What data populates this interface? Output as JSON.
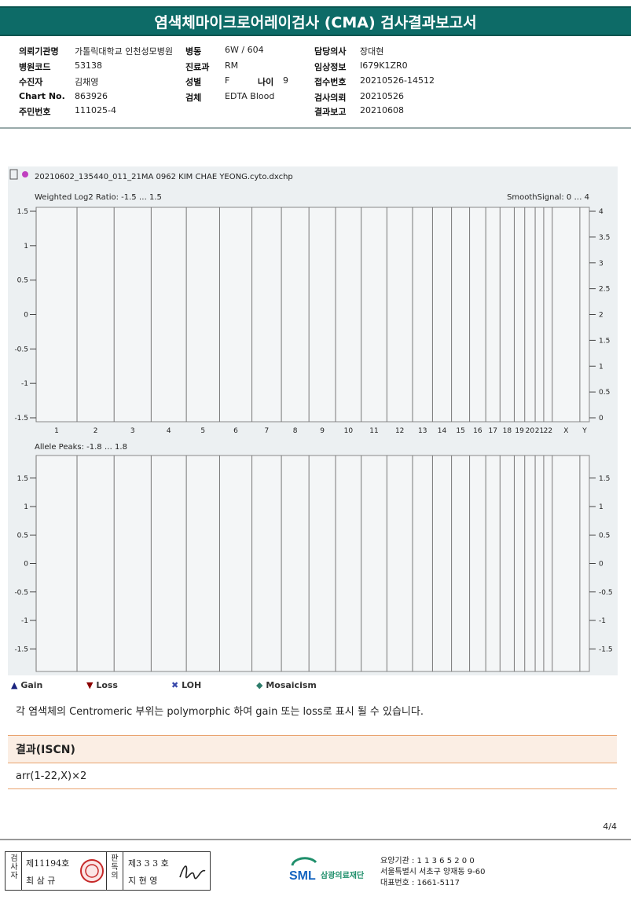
{
  "title": "염색체마이크로어레이검사 (CMA) 검사결과보고서",
  "info": [
    {
      "label": "의뢰기관명",
      "value": "가톨릭대학교 인천성모병원"
    },
    {
      "label": "병동",
      "value": "6W / 604"
    },
    {
      "label": "담당의사",
      "value": "장대현"
    },
    {
      "label": "병원코드",
      "value": "53138"
    },
    {
      "label": "진료과",
      "value": "RM"
    },
    {
      "label": "임상정보",
      "value": "I679K1ZR0"
    },
    {
      "label": "수진자",
      "value": "김채영"
    },
    {
      "label": "성별",
      "value": "F"
    },
    {
      "label": "나이",
      "value": "9"
    },
    {
      "label": "접수번호",
      "value": "20210526-14512"
    },
    {
      "label": "Chart No.",
      "value": "863926"
    },
    {
      "label": "검체",
      "value": "EDTA Blood"
    },
    {
      "label": "검사의뢰",
      "value": "20210526"
    },
    {
      "label": "주민번호",
      "value": "111025-4"
    },
    {
      "label": "결과보고",
      "value": "20210608"
    }
  ],
  "plot": {
    "file": "20210602_135440_011_21MA 0962 KIM CHAE YEONG.cyto.dxchp",
    "top_label": "Weighted Log2 Ratio: -1.5 … 1.5",
    "top_right_label": "SmoothSignal: 0 … 4",
    "bottom_label": "Allele Peaks: -1.8 … 1.8",
    "top_left_ticks": [
      "1.5",
      "1",
      "0.5",
      "0",
      "-0.5",
      "-1",
      "-1.5"
    ],
    "top_right_ticks": [
      "4",
      "3.5",
      "3",
      "2.5",
      "2",
      "1.5",
      "1",
      "0.5",
      "0"
    ],
    "bottom_left_ticks": [
      "1.5",
      "1",
      "0.5",
      "0",
      "-0.5",
      "-1",
      "-1.5"
    ],
    "bottom_right_ticks": [
      "1.5",
      "1",
      "0.5",
      "0",
      "-0.5",
      "-1",
      "-1.5"
    ],
    "chromosomes": [
      "1",
      "2",
      "3",
      "4",
      "5",
      "6",
      "7",
      "8",
      "9",
      "10",
      "11",
      "12",
      "13",
      "14",
      "15",
      "16",
      "17",
      "18",
      "19",
      "20",
      "21",
      "22",
      "X",
      "Y"
    ]
  },
  "legend": {
    "gain": "Gain",
    "loss": "Loss",
    "loh": "LOH",
    "mosaicism": "Mosaicism"
  },
  "note": "각 염색체의 Centromeric 부위는 polymorphic 하여 gain 또는 loss로 표시 될 수 있습니다.",
  "result_title": "결과(ISCN)",
  "result": "arr(1-22,X)×2",
  "page": "4/4",
  "footer": {
    "sig1_label": "검사자",
    "sig1_no": "제11194호",
    "sig1_name": "최 삼 규",
    "sig2_label": "판독의",
    "sig2_no": "제3 3 3 호",
    "sig2_name": "지 현 영",
    "org_abbr": "SML",
    "org_name": "삼광의료재단",
    "addr1": "요양기관 : 1 1 3 6 5 2 0 0",
    "addr2": "서울특별시 서초구 양재동 9-60",
    "addr3": "대표번호 : 1661-5117"
  }
}
